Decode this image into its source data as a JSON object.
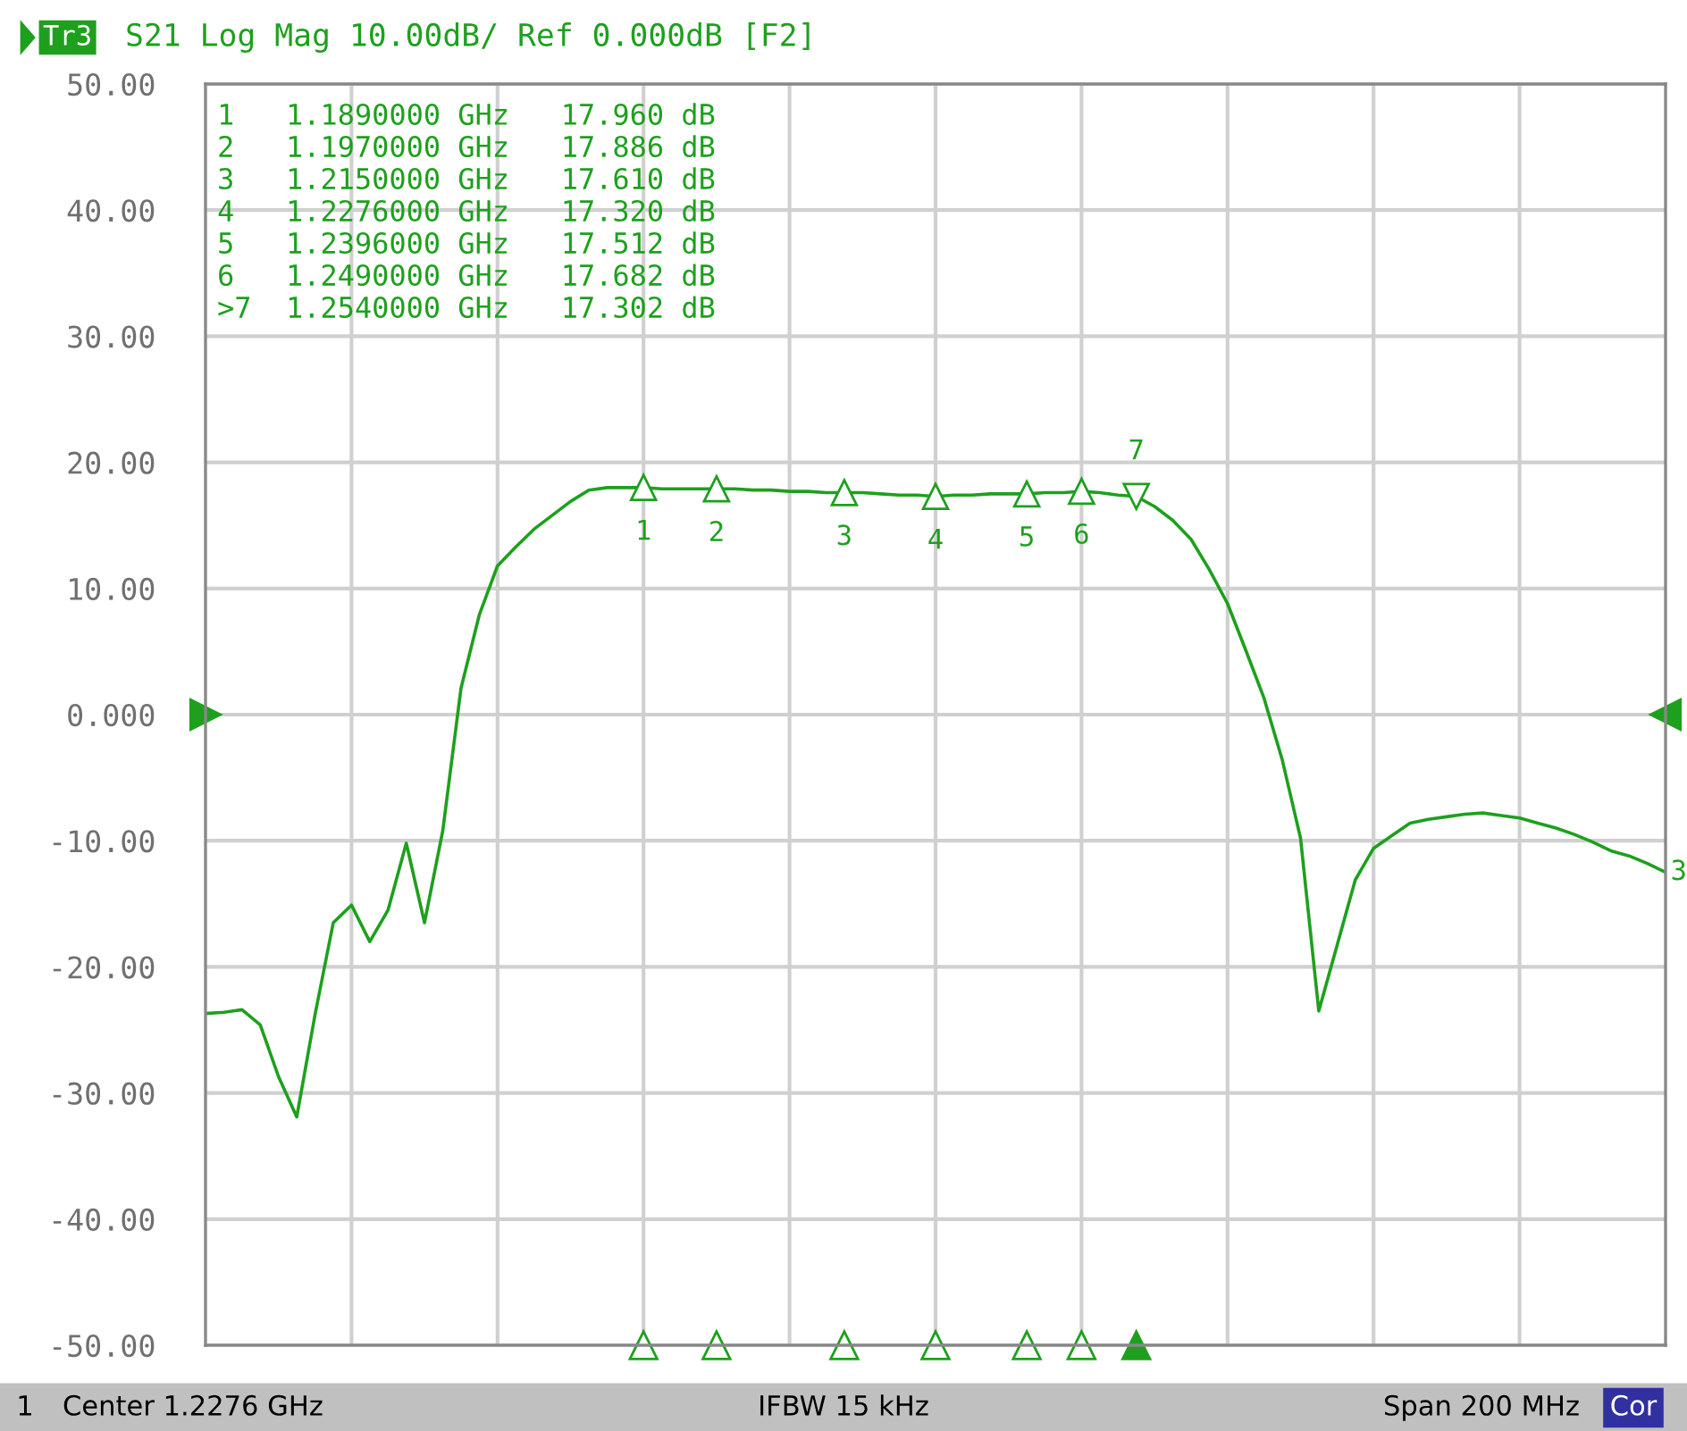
{
  "chart_data": {
    "type": "line",
    "title": "S21 Log Mag 10.00dB/ Ref 0.000dB [F2]",
    "annotations": [
      "Tr3",
      "1   1.1890000 GHz   17.960 dB",
      "2   1.1970000 GHz   17.886 dB",
      "3   1.2150000 GHz   17.610 dB",
      "4   1.2276000 GHz   17.320 dB",
      "5   1.2396000 GHz   17.512 dB",
      "6   1.2490000 GHz   17.682 dB",
      ">7  1.2540000 GHz   17.302 dB",
      "1",
      "Center 1.2276 GHz",
      "IFBW 15 kHz",
      "Span 200 MHz",
      "Cor",
      "3",
      "1",
      "2",
      "3",
      "4",
      "5",
      "6",
      "7"
    ],
    "categories": [
      null,
      null,
      null,
      null,
      null,
      null,
      null,
      null,
      null,
      null,
      null,
      null,
      null,
      null,
      null,
      null,
      null,
      null,
      null,
      null,
      null,
      null,
      null,
      null,
      null,
      null,
      null,
      null,
      null,
      null,
      null,
      null,
      null,
      null,
      null,
      null,
      null,
      null,
      null,
      null,
      null,
      null,
      null,
      null,
      null,
      null,
      null,
      null,
      null,
      null,
      null,
      null,
      null,
      null,
      null,
      null,
      null,
      null,
      null,
      null,
      null,
      null,
      null,
      null,
      null,
      null,
      null,
      null,
      null,
      null,
      null,
      null,
      null,
      null,
      null,
      null,
      null,
      null,
      null,
      null,
      null
    ],
    "series": [
      {
        "color": "#1ea01e",
        "values": [
          -23.7,
          -23.6,
          -23.4,
          -24.6,
          -28.7,
          -31.9,
          -23.8,
          -16.5,
          -15.1,
          -18.0,
          -15.5,
          -10.2,
          -16.5,
          -9.2,
          2.1,
          7.9,
          11.8,
          13.3,
          14.7,
          15.8,
          16.9,
          17.8,
          18.0,
          18.0,
          18.0,
          17.9,
          17.9,
          17.9,
          17.9,
          17.9,
          17.8,
          17.8,
          17.7,
          17.7,
          17.6,
          17.6,
          17.6,
          17.5,
          17.4,
          17.4,
          17.3,
          17.4,
          17.4,
          17.5,
          17.5,
          17.5,
          17.6,
          17.6,
          17.7,
          17.6,
          17.4,
          17.3,
          16.5,
          15.4,
          13.9,
          11.5,
          8.8,
          5.1,
          1.3,
          -3.6,
          -9.8,
          -23.5,
          -18.3,
          -13.1,
          -10.6,
          -9.6,
          -8.6,
          -8.3,
          -8.1,
          -7.9,
          -7.8,
          -8.0,
          -8.2,
          -8.6,
          -9.0,
          -9.5,
          -10.1,
          -10.8,
          -11.2,
          -11.8,
          -12.5
        ]
      },
      {
        "type": "scatter",
        "marker": "triangle",
        "color": "#1ea01e",
        "values": [
          null,
          null,
          null,
          null,
          null,
          null,
          null,
          null,
          null,
          null,
          null,
          null,
          null,
          null,
          null,
          null,
          null,
          null,
          null,
          null,
          null,
          null,
          null,
          null,
          18.0,
          null,
          null,
          null,
          17.9,
          null,
          null,
          null,
          null,
          null,
          null,
          17.6,
          null,
          null,
          null,
          null,
          17.3,
          null,
          null,
          null,
          null,
          17.5,
          null,
          null,
          17.7,
          null,
          null,
          17.3,
          null,
          null,
          null,
          null,
          null,
          null,
          null,
          null,
          null,
          null,
          null,
          null,
          null,
          null,
          null,
          null,
          null,
          null,
          null,
          null,
          null,
          null,
          null,
          null,
          null,
          null,
          null,
          null,
          null
        ]
      }
    ],
    "ylim": [
      -50,
      50
    ],
    "yticks": [
      {
        "value": 50,
        "label": "50.00"
      },
      {
        "value": 40,
        "label": "40.00"
      },
      {
        "value": 30,
        "label": "30.00"
      },
      {
        "value": 20,
        "label": "20.00"
      },
      {
        "value": 10,
        "label": "10.00"
      },
      {
        "value": 0,
        "label": "0.000"
      },
      {
        "value": -10,
        "label": "-10.00"
      },
      {
        "value": -20,
        "label": "-20.00"
      },
      {
        "value": -30,
        "label": "-30.00"
      },
      {
        "value": -40,
        "label": "-40.00"
      },
      {
        "value": -50,
        "label": "-50.00"
      }
    ],
    "tick_labels": "y",
    "grid": true,
    "marker": "none",
    "line_style": "solid",
    "legend": false
  }
}
